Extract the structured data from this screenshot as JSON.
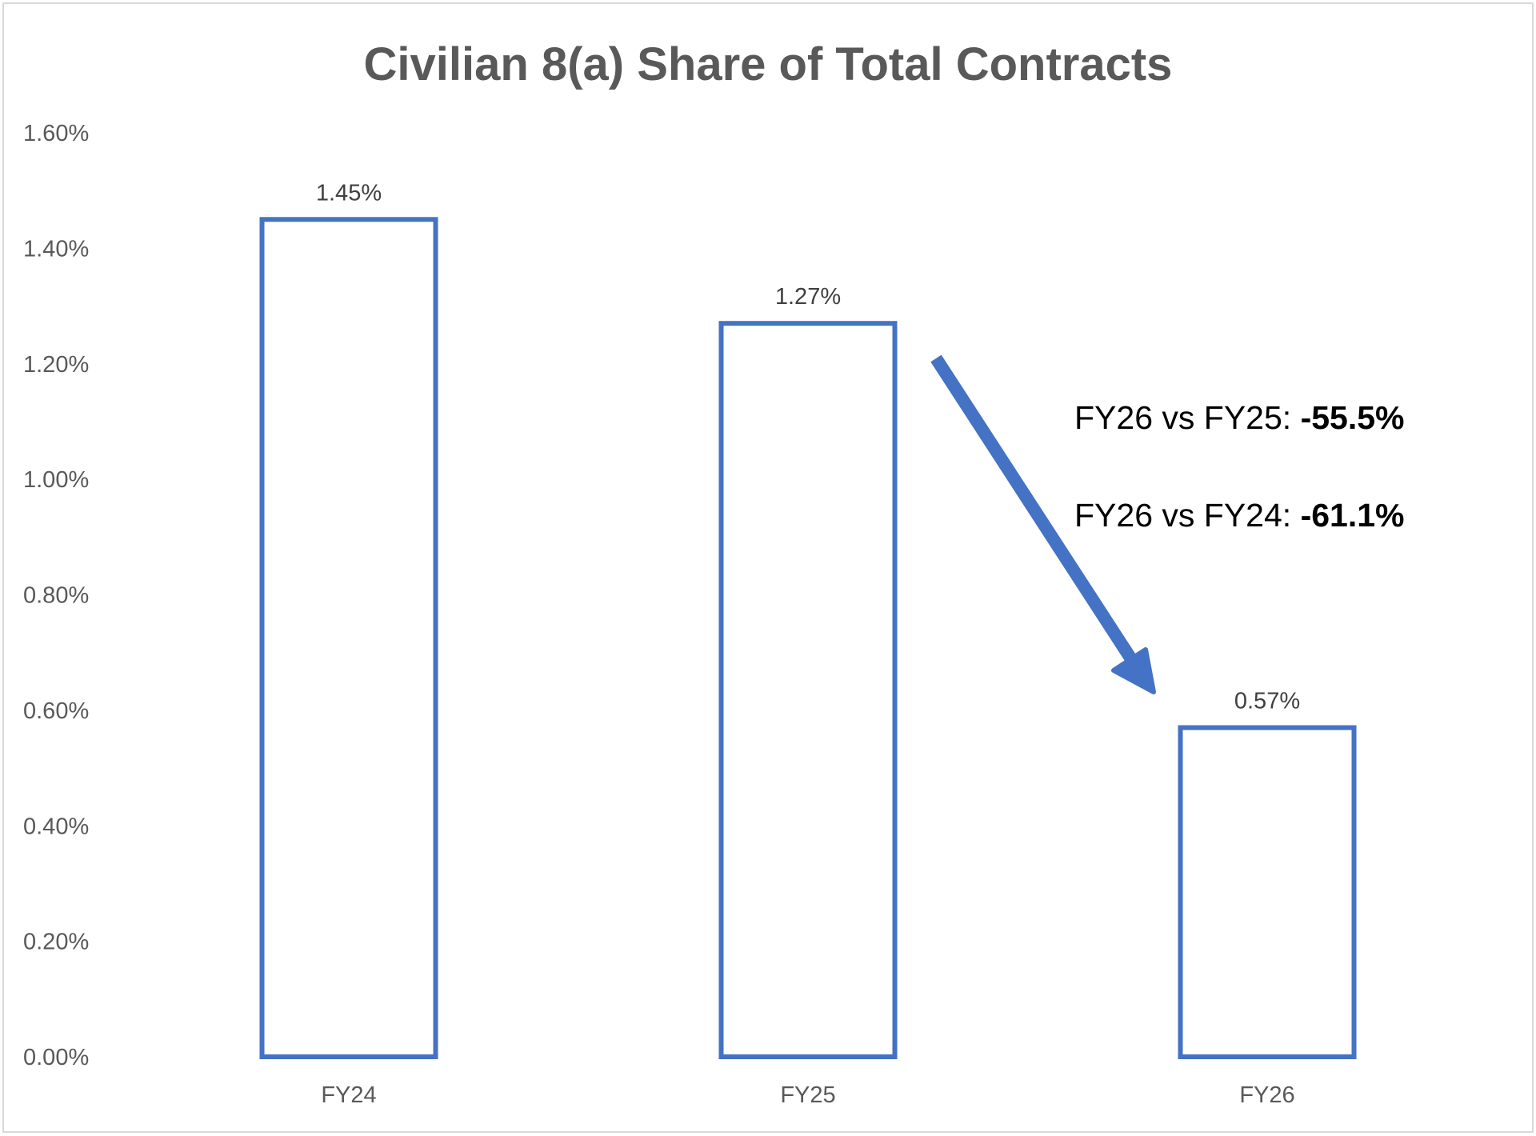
{
  "chart_data": {
    "type": "bar",
    "title": "Civilian 8(a) Share of Total Contracts",
    "categories": [
      "FY24",
      "FY25",
      "FY26"
    ],
    "values": [
      1.45,
      1.27,
      0.57
    ],
    "data_labels": [
      "1.45%",
      "1.27%",
      "0.57%"
    ],
    "y_unit": "%",
    "ylim": [
      0,
      1.6
    ],
    "y_ticks": [
      "0.00%",
      "0.20%",
      "0.40%",
      "0.60%",
      "0.80%",
      "1.00%",
      "1.20%",
      "1.40%",
      "1.60%"
    ],
    "grid": false,
    "legend": "none",
    "bar_style": "outline",
    "bar_color": "#4472C4",
    "annotations": [
      {
        "label": "FY26 vs FY25: ",
        "value": "-55.5%"
      },
      {
        "label": "FY26 vs FY24: ",
        "value": "-61.1%"
      }
    ],
    "arrow": {
      "from": "FY25",
      "to": "FY26",
      "color": "#4472C4"
    }
  }
}
